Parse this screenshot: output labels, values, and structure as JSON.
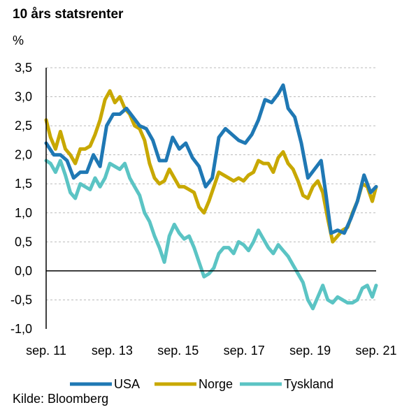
{
  "chart_data": {
    "type": "line",
    "title": "10 års statsrenter",
    "ylabel": "%",
    "xlabel": "",
    "source": "Kilde: Bloomberg",
    "ylim": [
      -1.0,
      3.5
    ],
    "yticks": [
      "3,5",
      "3,0",
      "2,5",
      "2,0",
      "1,5",
      "1,0",
      "0,5",
      "0,0",
      "-0,5",
      "-1,0"
    ],
    "ytick_values": [
      3.5,
      3.0,
      2.5,
      2.0,
      1.5,
      1.0,
      0.5,
      0.0,
      -0.5,
      -1.0
    ],
    "xlim": [
      2011.667,
      2021.667
    ],
    "xticks": [
      "sep. 11",
      "sep. 13",
      "sep. 15",
      "sep. 17",
      "sep. 19",
      "sep. 21"
    ],
    "xtick_values": [
      2011.667,
      2013.667,
      2015.667,
      2017.667,
      2019.667,
      2021.667
    ],
    "grid": "horizontal dashed",
    "legend_position": "bottom",
    "colors": {
      "USA": "#1f78b4",
      "Norge": "#c8a800",
      "Tyskland": "#5bc4c4",
      "axis": "#000000",
      "grid": "#bbbbbb"
    },
    "series": [
      {
        "name": "USA",
        "color": "#1f78b4",
        "x": [
          2011.667,
          2011.9,
          2012.1,
          2012.3,
          2012.5,
          2012.7,
          2012.9,
          2013.1,
          2013.3,
          2013.5,
          2013.7,
          2013.9,
          2014.1,
          2014.3,
          2014.5,
          2014.7,
          2014.9,
          2015.1,
          2015.3,
          2015.5,
          2015.7,
          2015.9,
          2016.1,
          2016.3,
          2016.5,
          2016.7,
          2016.9,
          2017.1,
          2017.3,
          2017.5,
          2017.7,
          2017.9,
          2018.1,
          2018.3,
          2018.5,
          2018.7,
          2018.85,
          2019.0,
          2019.2,
          2019.4,
          2019.6,
          2019.8,
          2020.0,
          2020.15,
          2020.3,
          2020.5,
          2020.7,
          2020.9,
          2021.1,
          2021.3,
          2021.5,
          2021.667
        ],
        "y": [
          2.2,
          2.0,
          2.0,
          1.9,
          1.6,
          1.7,
          1.7,
          2.0,
          1.8,
          2.5,
          2.7,
          2.7,
          2.8,
          2.65,
          2.5,
          2.45,
          2.25,
          1.9,
          1.9,
          2.3,
          2.1,
          2.2,
          1.95,
          1.8,
          1.45,
          1.6,
          2.3,
          2.45,
          2.35,
          2.25,
          2.2,
          2.35,
          2.6,
          2.95,
          2.9,
          3.05,
          3.2,
          2.8,
          2.65,
          2.2,
          1.6,
          1.75,
          1.9,
          1.3,
          0.65,
          0.7,
          0.65,
          0.9,
          1.2,
          1.65,
          1.35,
          1.45
        ]
      },
      {
        "name": "Norge",
        "color": "#c8a800",
        "x": [
          2011.667,
          2011.8,
          2011.95,
          2012.1,
          2012.25,
          2012.4,
          2012.55,
          2012.7,
          2012.85,
          2013.0,
          2013.15,
          2013.3,
          2013.45,
          2013.6,
          2013.75,
          2013.9,
          2014.05,
          2014.2,
          2014.35,
          2014.5,
          2014.65,
          2014.8,
          2014.95,
          2015.1,
          2015.25,
          2015.4,
          2015.55,
          2015.7,
          2015.85,
          2016.0,
          2016.15,
          2016.3,
          2016.45,
          2016.6,
          2016.75,
          2016.9,
          2017.05,
          2017.2,
          2017.35,
          2017.5,
          2017.65,
          2017.8,
          2017.95,
          2018.1,
          2018.25,
          2018.4,
          2018.55,
          2018.7,
          2018.85,
          2019.0,
          2019.15,
          2019.3,
          2019.45,
          2019.6,
          2019.75,
          2019.9,
          2020.05,
          2020.2,
          2020.35,
          2020.5,
          2020.65,
          2020.8,
          2020.95,
          2021.1,
          2021.25,
          2021.4,
          2021.55,
          2021.667
        ],
        "y": [
          2.6,
          2.3,
          2.1,
          2.4,
          2.1,
          2.0,
          1.85,
          2.1,
          2.1,
          2.15,
          2.35,
          2.6,
          2.95,
          3.1,
          2.9,
          3.0,
          2.8,
          2.7,
          2.5,
          2.45,
          2.25,
          1.85,
          1.6,
          1.5,
          1.55,
          1.75,
          1.6,
          1.45,
          1.45,
          1.4,
          1.35,
          1.1,
          1.0,
          1.2,
          1.45,
          1.7,
          1.65,
          1.6,
          1.55,
          1.6,
          1.55,
          1.65,
          1.7,
          1.9,
          1.85,
          1.85,
          1.7,
          1.95,
          2.05,
          1.85,
          1.75,
          1.55,
          1.3,
          1.25,
          1.45,
          1.55,
          1.35,
          0.9,
          0.5,
          0.6,
          0.7,
          0.75,
          1.0,
          1.2,
          1.5,
          1.45,
          1.2,
          1.45
        ]
      },
      {
        "name": "Tyskland",
        "color": "#5bc4c4",
        "x": [
          2011.667,
          2011.8,
          2011.95,
          2012.1,
          2012.25,
          2012.4,
          2012.55,
          2012.7,
          2012.85,
          2013.0,
          2013.15,
          2013.3,
          2013.45,
          2013.6,
          2013.75,
          2013.9,
          2014.05,
          2014.2,
          2014.35,
          2014.5,
          2014.65,
          2014.8,
          2014.95,
          2015.1,
          2015.25,
          2015.4,
          2015.55,
          2015.7,
          2015.85,
          2016.0,
          2016.15,
          2016.3,
          2016.45,
          2016.6,
          2016.75,
          2016.9,
          2017.05,
          2017.2,
          2017.35,
          2017.5,
          2017.65,
          2017.8,
          2017.95,
          2018.1,
          2018.25,
          2018.4,
          2018.55,
          2018.7,
          2018.85,
          2019.0,
          2019.15,
          2019.3,
          2019.45,
          2019.6,
          2019.75,
          2019.9,
          2020.05,
          2020.2,
          2020.35,
          2020.5,
          2020.65,
          2020.8,
          2020.95,
          2021.1,
          2021.25,
          2021.4,
          2021.55,
          2021.667
        ],
        "y": [
          1.9,
          1.85,
          1.7,
          1.9,
          1.65,
          1.35,
          1.25,
          1.5,
          1.45,
          1.4,
          1.6,
          1.45,
          1.6,
          1.85,
          1.8,
          1.75,
          1.85,
          1.6,
          1.45,
          1.3,
          1.0,
          0.85,
          0.6,
          0.4,
          0.15,
          0.6,
          0.8,
          0.65,
          0.55,
          0.6,
          0.4,
          0.15,
          -0.1,
          -0.05,
          0.05,
          0.3,
          0.4,
          0.4,
          0.3,
          0.5,
          0.45,
          0.35,
          0.5,
          0.7,
          0.55,
          0.4,
          0.3,
          0.45,
          0.35,
          0.25,
          0.1,
          -0.05,
          -0.2,
          -0.5,
          -0.65,
          -0.45,
          -0.25,
          -0.5,
          -0.55,
          -0.45,
          -0.5,
          -0.55,
          -0.55,
          -0.5,
          -0.3,
          -0.25,
          -0.45,
          -0.25
        ]
      }
    ]
  }
}
